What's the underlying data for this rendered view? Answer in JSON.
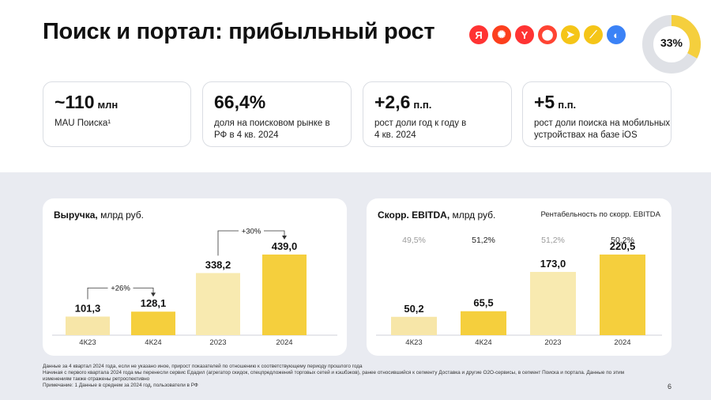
{
  "page": {
    "title": "Поиск и портал: прибыльный рост",
    "page_number": "6"
  },
  "logos": [
    {
      "icon": "yandex-search-icon",
      "glyph": "Я",
      "color": "#f33"
    },
    {
      "icon": "yandex-market-icon",
      "glyph": "✺",
      "color": "#fc3f1d"
    },
    {
      "icon": "yandex-browser-icon",
      "glyph": "Y",
      "color": "#ff3333"
    },
    {
      "icon": "yandex-maps-icon",
      "glyph": "⬤",
      "color": "#ff4433"
    },
    {
      "icon": "yandex-navigator-icon",
      "glyph": "➤",
      "color": "#f5c518"
    },
    {
      "icon": "yandex-zen-icon",
      "glyph": "⟋",
      "color": "#f5c518"
    },
    {
      "icon": "yandex-disk-icon",
      "glyph": "◐",
      "color": "#3b82f6"
    }
  ],
  "donut": {
    "label": "33%",
    "fraction": 0.33,
    "accent": "#f5cf3d",
    "base": "#dfe1e6"
  },
  "kpis": [
    {
      "value": "~110",
      "unit": "млн",
      "desc": "MAU Поиска¹"
    },
    {
      "value": "66,4%",
      "unit": "",
      "desc": "доля на поисковом рынке в РФ в 4 кв. 2024"
    },
    {
      "value": "+2,6",
      "unit": "п.п.",
      "desc": "рост доли год к году в 4 кв. 2024"
    },
    {
      "value": "+5",
      "unit": "п.п.",
      "desc": "рост доли поиска на мобильных устройствах на базе iOS"
    }
  ],
  "chart_data": [
    {
      "type": "bar",
      "title_bold": "Выручка,",
      "title_rest": " млрд руб.",
      "categories": [
        "4К23",
        "4К24",
        "2023",
        "2024"
      ],
      "values": [
        101.3,
        128.1,
        338.2,
        439.0
      ],
      "value_labels": [
        "101,3",
        "128,1",
        "338,2",
        "439,0"
      ],
      "colors": [
        "#f7e6a8",
        "#f5cf3d",
        "#f8eab0",
        "#f5cf3d"
      ],
      "growth": [
        {
          "label": "+26%",
          "from": 0,
          "to": 1
        },
        {
          "label": "+30%",
          "from": 2,
          "to": 3
        }
      ]
    },
    {
      "type": "bar",
      "title_bold": "Скорр. EBITDA,",
      "title_rest": " млрд руб.",
      "categories": [
        "4К23",
        "4К24",
        "2023",
        "2024"
      ],
      "values": [
        50.2,
        65.5,
        173.0,
        220.5
      ],
      "value_labels": [
        "50,2",
        "65,5",
        "173,0",
        "220,5"
      ],
      "colors": [
        "#f7e6a8",
        "#f5cf3d",
        "#f8eab0",
        "#f5cf3d"
      ],
      "margin_header": "Рентабельность по скорр. EBITDA",
      "margins": [
        "49,5%",
        "51,2%",
        "51,2%",
        "50,2%"
      ],
      "margin_colors": [
        "#9a9a9a",
        "#222222",
        "#9a9a9a",
        "#222222"
      ]
    }
  ],
  "footnotes": [
    "Данные за 4 квартал 2024 года, если не указано иное, прирост показателей по отношению к соответствующему периоду прошлого года",
    "Начиная с первого квартала 2024 года мы перенесли сервис Едадил (агрегатор скидок, спецпредложений торговых сетей и кэшбэков), ранее относившийся к сегменту Доставка и другие О2О-сервисы, в сегмент Поиска и портала. Данные по этим изменениям также отражены ретроспективно",
    "Примечание: 1 Данные в среднем за 2024 год, пользователи в РФ"
  ]
}
